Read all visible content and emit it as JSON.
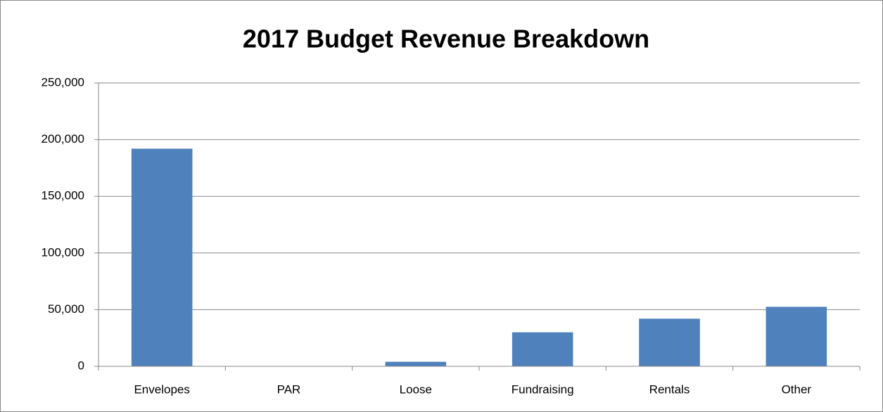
{
  "chart_data": {
    "type": "bar",
    "title": "2017 Budget Revenue Breakdown",
    "categories": [
      "Envelopes",
      "PAR",
      "Loose",
      "Fundraising",
      "Rentals",
      "Other"
    ],
    "values": [
      192000,
      0,
      4000,
      30000,
      42000,
      52500
    ],
    "color": "#4f81bd",
    "ylim": [
      0,
      250000
    ],
    "yticks": [
      0,
      {
        "value": 50000,
        "label": "50,000"
      },
      {
        "value": 100000,
        "label": "100,000"
      },
      {
        "value": 150000,
        "label": "150,000"
      },
      {
        "value": 200000,
        "label": "200,000"
      },
      {
        "value": 250000,
        "label": "250,000"
      }
    ],
    "grid": true
  }
}
